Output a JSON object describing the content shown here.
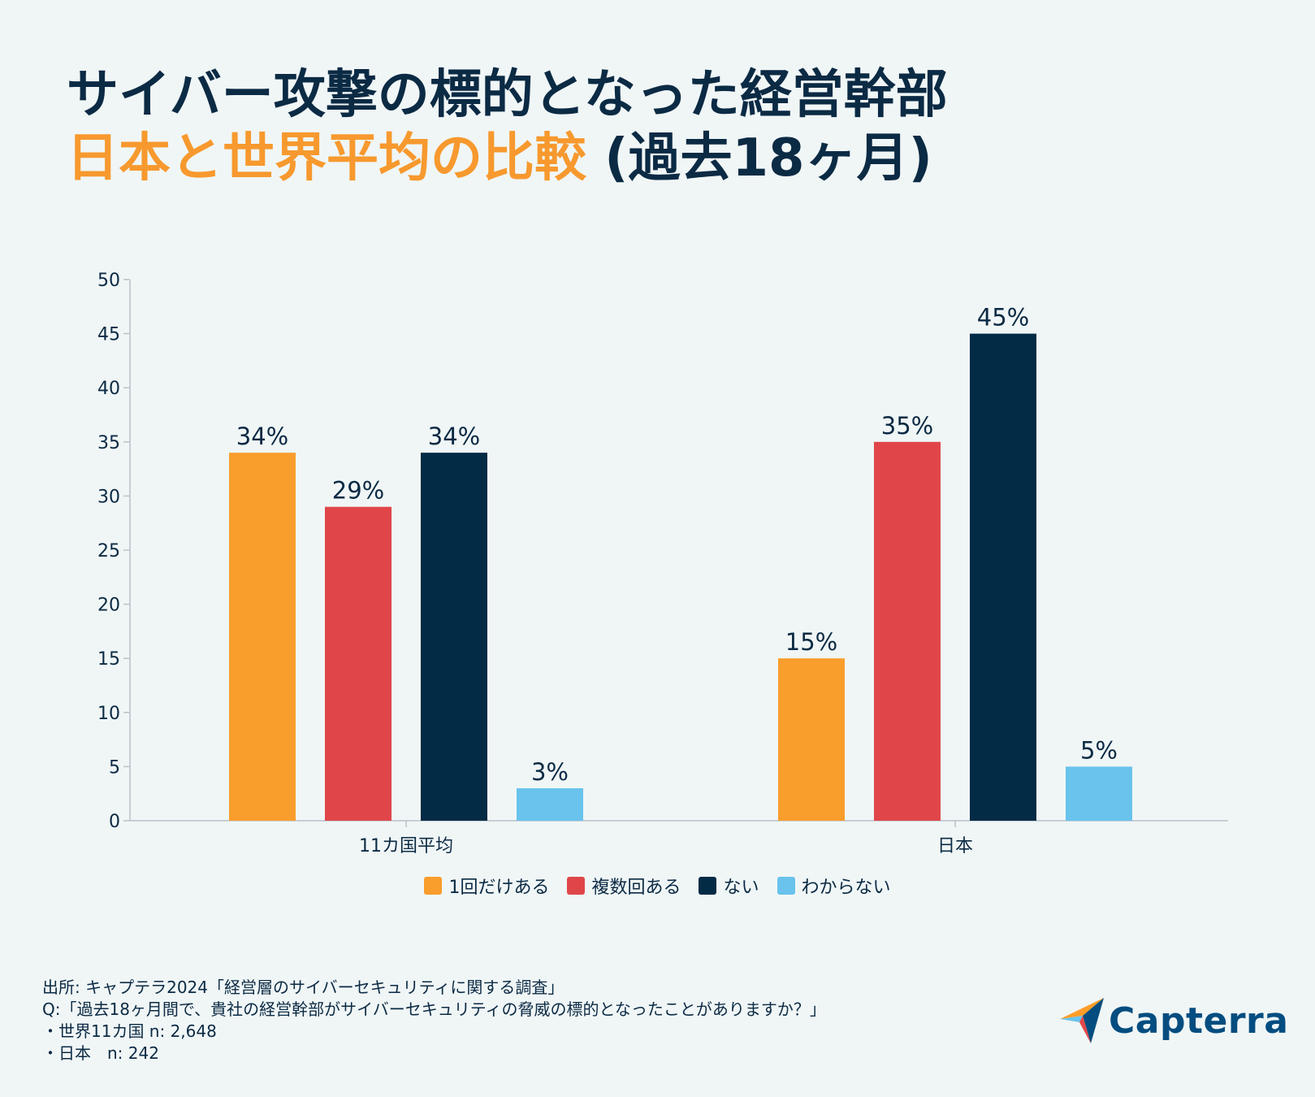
{
  "title": {
    "line1": "サイバー攻撃の標的となった経営幹部",
    "line2_accent": "日本と世界平均の比較",
    "line2_rest": " (過去18ヶ月)"
  },
  "colors": {
    "once": "#f99d2c",
    "multiple": "#e04649",
    "none": "#032b45",
    "unknown": "#69c3ec",
    "accent": "#f7992e",
    "text": "#0b2a44"
  },
  "chart_data": {
    "type": "bar",
    "categories": [
      "11カ国平均",
      "日本"
    ],
    "series": [
      {
        "name": "1回だけある",
        "values": [
          34,
          15
        ],
        "labels": [
          "34%",
          "15%"
        ]
      },
      {
        "name": "複数回ある",
        "values": [
          29,
          35
        ],
        "labels": [
          "29%",
          "35%"
        ]
      },
      {
        "name": "ない",
        "values": [
          34,
          45
        ],
        "labels": [
          "34%",
          "45%"
        ]
      },
      {
        "name": "わからない",
        "values": [
          3,
          5
        ],
        "labels": [
          "3%",
          "5%"
        ]
      }
    ],
    "ylim": [
      0,
      50
    ],
    "yticks": [
      0,
      5,
      10,
      15,
      20,
      25,
      30,
      35,
      40,
      45,
      50
    ],
    "legend_position": "bottom",
    "grid": false
  },
  "legend": {
    "items": [
      "1回だけある",
      "複数回ある",
      "ない",
      "わからない"
    ]
  },
  "footnote": {
    "source": "出所: キャプテラ2024「経営層のサイバーセキュリティに関する調査」",
    "question": "Q:「過去18ヶ月間で、貴社の経営幹部がサイバーセキュリティの脅威の標的となったことがありますか？」",
    "sample_world": "・世界11カ国 n: 2,648",
    "sample_japan": "・日本　n: 242"
  },
  "logo": {
    "text": "Capterra",
    "icon": "capterra-arrow-icon"
  }
}
